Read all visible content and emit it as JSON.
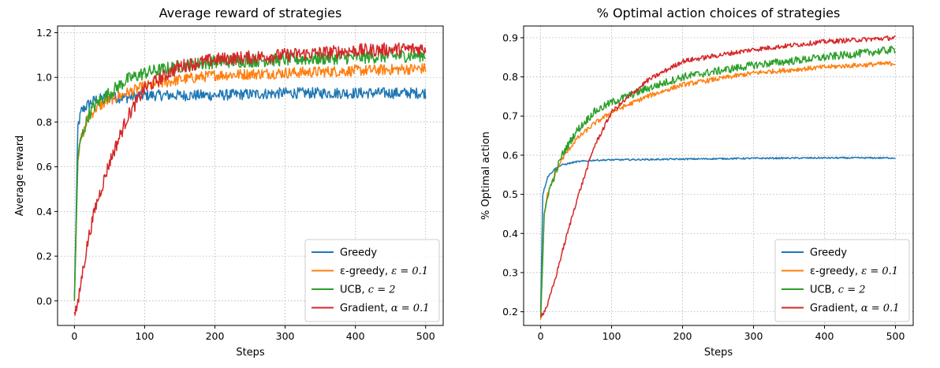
{
  "chart_data": [
    {
      "type": "line",
      "title": "Average reward of strategies",
      "xlabel": "Steps",
      "ylabel": "Average reward",
      "xlim": [
        -24,
        525
      ],
      "ylim": [
        -0.11,
        1.23
      ],
      "xticks": [
        0,
        100,
        200,
        300,
        400,
        500
      ],
      "yticks": [
        0.0,
        0.2,
        0.4,
        0.6,
        0.8,
        1.0,
        1.2
      ],
      "ytick_labels": [
        "0.0",
        "0.2",
        "0.4",
        "0.6",
        "0.8",
        "1.0",
        "1.2"
      ],
      "grid": true,
      "legend_position": "lower-right",
      "series": [
        {
          "name": "Greedy",
          "color": "#1f77b4",
          "legend": {
            "prefix": "Greedy",
            "math": ""
          },
          "x": [
            0,
            5,
            10,
            20,
            30,
            50,
            75,
            100,
            150,
            200,
            300,
            400,
            500
          ],
          "y": [
            0.02,
            0.78,
            0.85,
            0.88,
            0.9,
            0.91,
            0.91,
            0.92,
            0.92,
            0.92,
            0.93,
            0.93,
            0.93
          ],
          "noise": 0.025
        },
        {
          "name": "ε-greedy, ε = 0.1",
          "color": "#ff7f0e",
          "legend": {
            "prefix": "ε-greedy, ",
            "math": "ε = 0.1"
          },
          "x": [
            0,
            5,
            10,
            20,
            30,
            50,
            75,
            100,
            150,
            200,
            300,
            400,
            500
          ],
          "y": [
            0.0,
            0.65,
            0.73,
            0.82,
            0.86,
            0.9,
            0.93,
            0.96,
            0.99,
            1.01,
            1.02,
            1.03,
            1.04
          ],
          "noise": 0.025
        },
        {
          "name": "UCB, c = 2",
          "color": "#2ca02c",
          "legend": {
            "prefix": "UCB, ",
            "math": "c = 2"
          },
          "x": [
            0,
            5,
            10,
            20,
            30,
            50,
            75,
            100,
            150,
            200,
            300,
            400,
            500
          ],
          "y": [
            0.0,
            0.65,
            0.73,
            0.83,
            0.88,
            0.93,
            0.99,
            1.02,
            1.05,
            1.07,
            1.08,
            1.09,
            1.1
          ],
          "noise": 0.03
        },
        {
          "name": "Gradient, α = 0.1",
          "color": "#d62728",
          "legend": {
            "prefix": "Gradient, ",
            "math": "α = 0.1"
          },
          "x": [
            0,
            5,
            10,
            20,
            30,
            50,
            75,
            100,
            150,
            200,
            300,
            400,
            500
          ],
          "y": [
            -0.05,
            -0.02,
            0.1,
            0.28,
            0.42,
            0.62,
            0.82,
            0.95,
            1.05,
            1.08,
            1.1,
            1.12,
            1.13
          ],
          "noise": 0.03
        }
      ]
    },
    {
      "type": "line",
      "title": "% Optimal action choices of strategies",
      "xlabel": "Steps",
      "ylabel": "% Optimal action",
      "xlim": [
        -24,
        525
      ],
      "ylim": [
        0.165,
        0.93
      ],
      "xticks": [
        0,
        100,
        200,
        300,
        400,
        500
      ],
      "yticks": [
        0.2,
        0.3,
        0.4,
        0.5,
        0.6,
        0.7,
        0.8,
        0.9
      ],
      "ytick_labels": [
        "0.2",
        "0.3",
        "0.4",
        "0.5",
        "0.6",
        "0.7",
        "0.8",
        "0.9"
      ],
      "grid": true,
      "legend_position": "lower-right",
      "series": [
        {
          "name": "Greedy",
          "color": "#1f77b4",
          "legend": {
            "prefix": "Greedy",
            "math": ""
          },
          "x": [
            0,
            3,
            10,
            20,
            30,
            50,
            75,
            100,
            150,
            200,
            300,
            400,
            500
          ],
          "y": [
            0.2,
            0.5,
            0.545,
            0.565,
            0.575,
            0.583,
            0.587,
            0.588,
            0.589,
            0.59,
            0.592,
            0.593,
            0.593
          ],
          "noise": 0.002
        },
        {
          "name": "ε-greedy, ε = 0.1",
          "color": "#ff7f0e",
          "legend": {
            "prefix": "ε-greedy, ",
            "math": "ε = 0.1"
          },
          "x": [
            0,
            5,
            10,
            20,
            30,
            50,
            75,
            100,
            150,
            200,
            300,
            400,
            500
          ],
          "y": [
            0.18,
            0.45,
            0.5,
            0.55,
            0.59,
            0.64,
            0.68,
            0.71,
            0.75,
            0.78,
            0.81,
            0.825,
            0.835
          ],
          "noise": 0.006
        },
        {
          "name": "UCB, c = 2",
          "color": "#2ca02c",
          "legend": {
            "prefix": "UCB, ",
            "math": "c = 2"
          },
          "x": [
            0,
            5,
            10,
            20,
            30,
            50,
            75,
            100,
            150,
            200,
            300,
            400,
            500
          ],
          "y": [
            0.19,
            0.44,
            0.5,
            0.55,
            0.6,
            0.66,
            0.71,
            0.735,
            0.77,
            0.8,
            0.83,
            0.85,
            0.87
          ],
          "noise": 0.01
        },
        {
          "name": "Gradient, α = 0.1",
          "color": "#d62728",
          "legend": {
            "prefix": "Gradient, ",
            "math": "α = 0.1"
          },
          "x": [
            0,
            5,
            10,
            20,
            30,
            50,
            75,
            100,
            150,
            200,
            300,
            400,
            500
          ],
          "y": [
            0.19,
            0.2,
            0.22,
            0.28,
            0.35,
            0.48,
            0.62,
            0.71,
            0.79,
            0.84,
            0.87,
            0.89,
            0.9
          ],
          "noise": 0.006
        }
      ]
    }
  ]
}
